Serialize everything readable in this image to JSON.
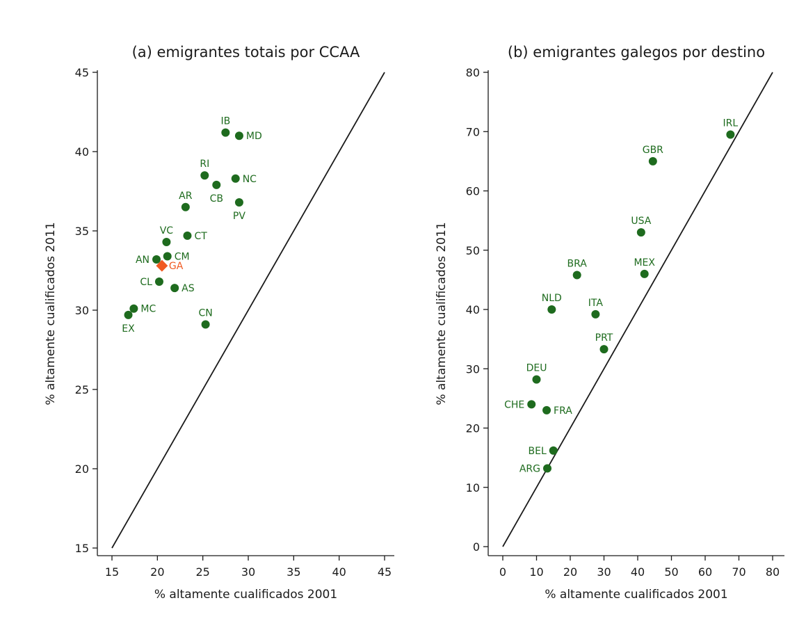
{
  "chart_data": [
    {
      "type": "scatter",
      "title": "(a) emigrantes totais por CCAA",
      "xlabel": "% altamente cualificados 2001",
      "ylabel": "% altamente cualificados 2011",
      "xlim": [
        15,
        45
      ],
      "ylim": [
        15,
        45
      ],
      "xticks": [
        15,
        20,
        25,
        30,
        35,
        40,
        45
      ],
      "yticks": [
        15,
        20,
        25,
        30,
        35,
        40,
        45
      ],
      "reference_line": {
        "x": [
          15,
          45
        ],
        "y": [
          15,
          45
        ]
      },
      "grid": false,
      "points": [
        {
          "label": "IB",
          "x": 27.5,
          "y": 41.2,
          "labelpos": "n"
        },
        {
          "label": "MD",
          "x": 29.0,
          "y": 41.0,
          "labelpos": "e"
        },
        {
          "label": "RI",
          "x": 25.2,
          "y": 38.5,
          "labelpos": "n"
        },
        {
          "label": "CB",
          "x": 26.5,
          "y": 37.9,
          "labelpos": "s"
        },
        {
          "label": "NC",
          "x": 28.6,
          "y": 38.3,
          "labelpos": "e"
        },
        {
          "label": "PV",
          "x": 29.0,
          "y": 36.8,
          "labelpos": "s"
        },
        {
          "label": "AR",
          "x": 23.1,
          "y": 36.5,
          "labelpos": "n"
        },
        {
          "label": "CT",
          "x": 23.3,
          "y": 34.7,
          "labelpos": "e"
        },
        {
          "label": "VC",
          "x": 21.0,
          "y": 34.3,
          "labelpos": "n"
        },
        {
          "label": "CM",
          "x": 21.1,
          "y": 33.4,
          "labelpos": "e"
        },
        {
          "label": "AN",
          "x": 19.9,
          "y": 33.2,
          "labelpos": "w"
        },
        {
          "label": "GA",
          "x": 20.5,
          "y": 32.8,
          "labelpos": "e",
          "highlight": true
        },
        {
          "label": "CL",
          "x": 20.2,
          "y": 31.8,
          "labelpos": "w"
        },
        {
          "label": "AS",
          "x": 21.9,
          "y": 31.4,
          "labelpos": "e"
        },
        {
          "label": "MC",
          "x": 17.4,
          "y": 30.1,
          "labelpos": "e"
        },
        {
          "label": "EX",
          "x": 16.8,
          "y": 29.7,
          "labelpos": "s"
        },
        {
          "label": "CN",
          "x": 25.3,
          "y": 29.1,
          "labelpos": "n"
        }
      ]
    },
    {
      "type": "scatter",
      "title": "(b) emigrantes galegos por destino",
      "xlabel": "% altamente cualificados 2001",
      "ylabel": "% altamente cualificados 2011",
      "xlim": [
        0,
        80
      ],
      "ylim": [
        0,
        80
      ],
      "xticks": [
        0,
        10,
        20,
        30,
        40,
        50,
        60,
        70,
        80
      ],
      "yticks": [
        0,
        10,
        20,
        30,
        40,
        50,
        60,
        70,
        80
      ],
      "reference_line": {
        "x": [
          0,
          80
        ],
        "y": [
          0,
          80
        ]
      },
      "grid": false,
      "points": [
        {
          "label": "IRL",
          "x": 67.5,
          "y": 69.5,
          "labelpos": "n"
        },
        {
          "label": "GBR",
          "x": 44.5,
          "y": 65.0,
          "labelpos": "n"
        },
        {
          "label": "USA",
          "x": 41.0,
          "y": 53.0,
          "labelpos": "n"
        },
        {
          "label": "MEX",
          "x": 42.0,
          "y": 46.0,
          "labelpos": "n"
        },
        {
          "label": "BRA",
          "x": 22.0,
          "y": 45.8,
          "labelpos": "n"
        },
        {
          "label": "NLD",
          "x": 14.5,
          "y": 40.0,
          "labelpos": "n"
        },
        {
          "label": "ITA",
          "x": 27.5,
          "y": 39.2,
          "labelpos": "n"
        },
        {
          "label": "PRT",
          "x": 30.0,
          "y": 33.3,
          "labelpos": "n"
        },
        {
          "label": "DEU",
          "x": 10.0,
          "y": 28.2,
          "labelpos": "n"
        },
        {
          "label": "CHE",
          "x": 8.5,
          "y": 24.0,
          "labelpos": "w"
        },
        {
          "label": "FRA",
          "x": 13.0,
          "y": 23.0,
          "labelpos": "e"
        },
        {
          "label": "BEL",
          "x": 15.0,
          "y": 16.2,
          "labelpos": "w"
        },
        {
          "label": "ARG",
          "x": 13.2,
          "y": 13.2,
          "labelpos": "w"
        }
      ]
    }
  ],
  "colors": {
    "point": "#1e6b1e",
    "highlight": "#f05a22",
    "line": "#1a1a1a",
    "axis": "#1a1a1a"
  }
}
